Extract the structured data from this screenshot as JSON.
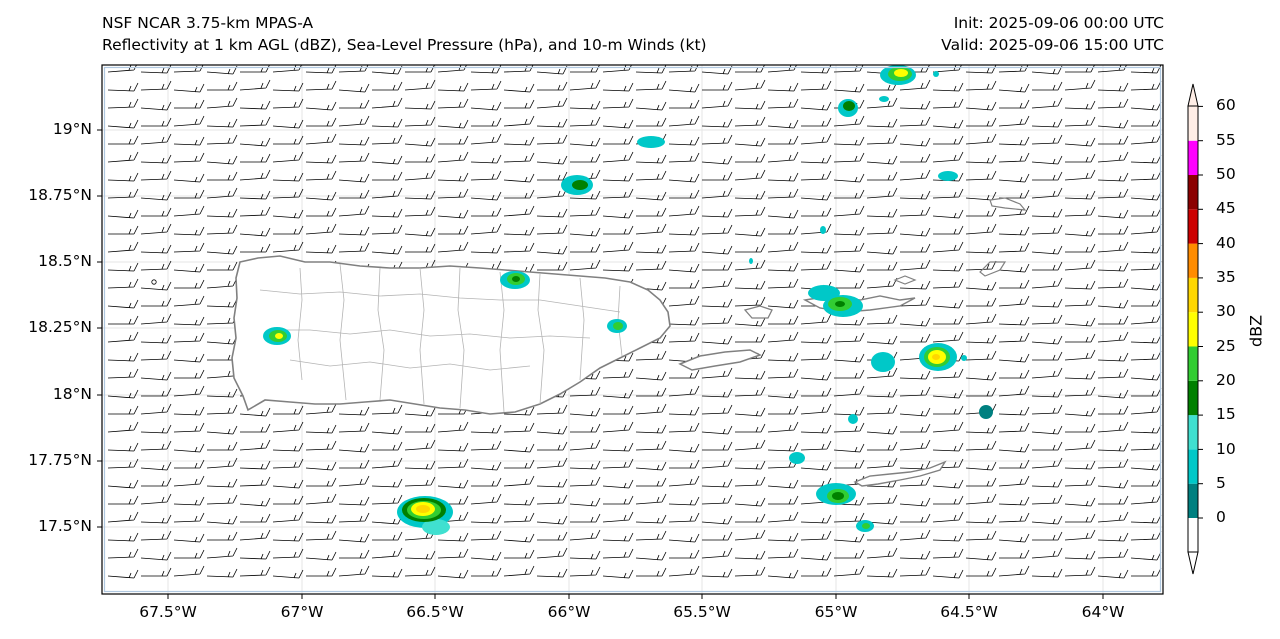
{
  "header": {
    "model": "NSF NCAR 3.75-km MPAS-A",
    "fields": "Reflectivity at 1 km AGL (dBZ), Sea-Level Pressure (hPa), and 10-m Winds (kt)",
    "init": "Init: 2025-09-06 00:00 UTC",
    "valid": "Valid: 2025-09-06 15:00 UTC"
  },
  "axes": {
    "lon_ticks": [
      "67.5°W",
      "67°W",
      "66.5°W",
      "66°W",
      "65.5°W",
      "65°W",
      "64.5°W",
      "64°W"
    ],
    "lat_ticks": [
      "19°N",
      "18.75°N",
      "18.5°N",
      "18.25°N",
      "18°N",
      "17.75°N",
      "17.5°N"
    ]
  },
  "colorbar": {
    "title": "dBZ",
    "ticks": [
      "0",
      "5",
      "10",
      "15",
      "20",
      "25",
      "30",
      "35",
      "40",
      "45",
      "50",
      "55",
      "60"
    ],
    "colors": [
      "#008080",
      "#00c8c8",
      "#40e0d0",
      "#008000",
      "#32cd32",
      "#ffff00",
      "#ffd700",
      "#ff8c00",
      "#cc0000",
      "#8b0000",
      "#ff00ff",
      "#ffeee6"
    ]
  },
  "map": {
    "gridline_color": "#e6e6e6",
    "coast_color": "#808080",
    "border_color": "#a0a0a0",
    "wind_barb_color": "#000000"
  }
}
